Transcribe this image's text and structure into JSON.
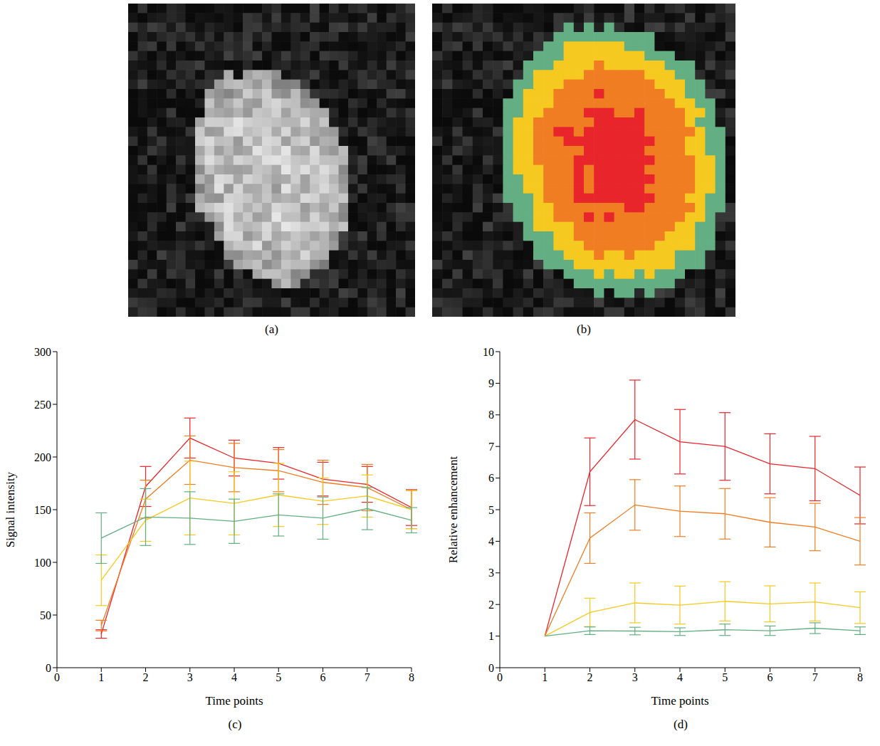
{
  "chart_data": [
    {
      "type": "image",
      "title": "(a)"
    },
    {
      "type": "image",
      "title": "(b)"
    },
    {
      "type": "line",
      "title": "(c)",
      "xlabel": "Time points",
      "ylabel": "Signal intensity",
      "x": [
        1,
        2,
        3,
        4,
        5,
        6,
        7,
        8
      ],
      "xlim": [
        0,
        8
      ],
      "xticks": [
        0,
        1,
        2,
        3,
        4,
        5,
        6,
        7,
        8
      ],
      "ylim": [
        0,
        300
      ],
      "yticks": [
        0,
        50,
        100,
        150,
        200,
        250,
        300
      ],
      "series": [
        {
          "color": "#e8252a",
          "values": [
            32,
            172,
            218,
            199,
            194,
            179,
            174,
            152
          ],
          "error": [
            4,
            19,
            19,
            17,
            15,
            16,
            17,
            17
          ]
        },
        {
          "color": "#f07d22",
          "values": [
            40,
            160,
            197,
            190,
            187,
            176,
            171,
            150
          ],
          "error": [
            5,
            18,
            23,
            23,
            20,
            21,
            22,
            18
          ]
        },
        {
          "color": "#f5c91f",
          "values": [
            83,
            140,
            161,
            156,
            164,
            158,
            163,
            150
          ],
          "error": [
            24,
            20,
            35,
            30,
            30,
            22,
            20,
            18
          ]
        },
        {
          "color": "#63ae82",
          "values": [
            123,
            143,
            142,
            139,
            145,
            142,
            151,
            140
          ],
          "error": [
            24,
            27,
            25,
            21,
            20,
            20,
            20,
            12
          ]
        }
      ]
    },
    {
      "type": "line",
      "title": "(d)",
      "xlabel": "Time points",
      "ylabel": "Relative enhancement",
      "x": [
        1,
        2,
        3,
        4,
        5,
        6,
        7,
        8
      ],
      "xlim": [
        0,
        8
      ],
      "xticks": [
        0,
        1,
        2,
        3,
        4,
        5,
        6,
        7,
        8
      ],
      "ylim": [
        0,
        10
      ],
      "yticks": [
        0,
        1,
        2,
        3,
        4,
        5,
        6,
        7,
        8,
        9,
        10
      ],
      "series": [
        {
          "color": "#e8252a",
          "values": [
            1,
            6.2,
            7.85,
            7.15,
            7.0,
            6.45,
            6.3,
            5.45
          ],
          "error": [
            0,
            1.07,
            1.25,
            1.02,
            1.07,
            0.95,
            1.02,
            0.9
          ]
        },
        {
          "color": "#f07d22",
          "values": [
            1,
            4.1,
            5.15,
            4.95,
            4.87,
            4.6,
            4.45,
            4.0
          ],
          "error": [
            0,
            0.8,
            0.8,
            0.8,
            0.8,
            0.78,
            0.75,
            0.75
          ]
        },
        {
          "color": "#f5c91f",
          "values": [
            1,
            1.75,
            2.05,
            1.98,
            2.1,
            2.02,
            2.08,
            1.9
          ],
          "error": [
            0,
            0.45,
            0.63,
            0.6,
            0.62,
            0.57,
            0.6,
            0.5
          ]
        },
        {
          "color": "#63ae82",
          "values": [
            1,
            1.17,
            1.16,
            1.14,
            1.2,
            1.17,
            1.25,
            1.17
          ],
          "error": [
            0,
            0.12,
            0.12,
            0.12,
            0.18,
            0.15,
            0.17,
            0.12
          ]
        }
      ]
    }
  ]
}
